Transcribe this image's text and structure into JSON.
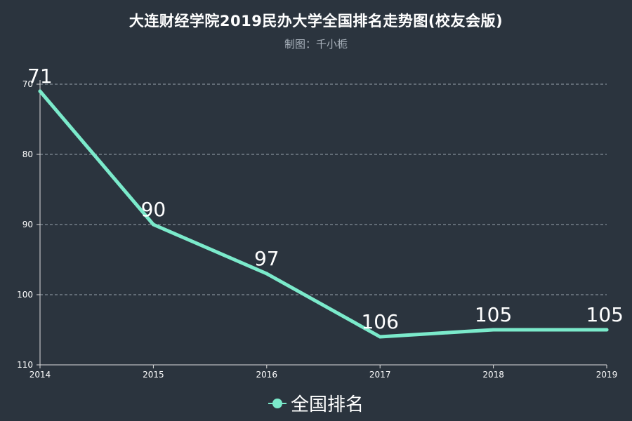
{
  "chart_data": {
    "type": "line",
    "title": "大连财经学院2019民办大学全国排名走势图(校友会版)",
    "subtitle": "制图：千小栀",
    "categories": [
      "2014",
      "2015",
      "2016",
      "2017",
      "2018",
      "2019"
    ],
    "series": [
      {
        "name": "全国排名",
        "values": [
          71,
          90,
          97,
          106,
          105,
          105
        ],
        "labels": [
          "71",
          "90",
          "97",
          "106",
          "105",
          "105"
        ]
      }
    ],
    "yticks": [
      "70",
      "80",
      "90",
      "100",
      "110"
    ],
    "ylim": [
      70,
      110
    ],
    "y_inverted": true,
    "xlabel": "",
    "ylabel": "",
    "grid": true,
    "legend": "bottom-center"
  },
  "colors": {
    "background": "#2b343e",
    "series": "#7beacb",
    "axis": "#dddddd",
    "grid": "#9aa3ad"
  }
}
